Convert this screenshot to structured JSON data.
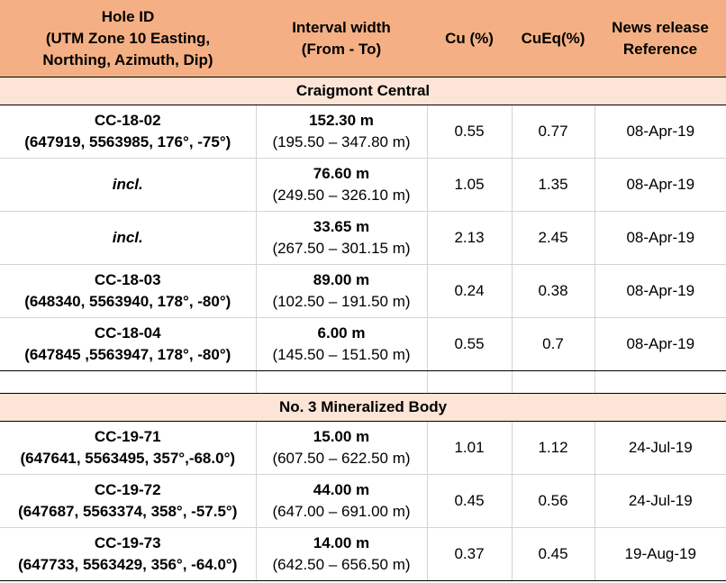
{
  "headers": {
    "hole_id_line1": "Hole ID",
    "hole_id_line2": "(UTM Zone 10 Easting,",
    "hole_id_line3": "Northing, Azimuth, Dip)",
    "interval_line1": "Interval width",
    "interval_line2": "(From - To)",
    "cu": "Cu (%)",
    "cueq": "CuEq(%)",
    "news_line1": "News release",
    "news_line2": "Reference"
  },
  "sections": [
    {
      "title": "Craigmont Central",
      "rows": [
        {
          "hole": "CC-18-02",
          "coords": "(647919, 5563985, 176°, -75°)",
          "width": "152.30 m",
          "range": "(195.50 – 347.80 m)",
          "cu": "0.55",
          "cueq": "0.77",
          "ref": "08-Apr-19"
        },
        {
          "hole": "incl.",
          "coords": "",
          "width": "76.60 m",
          "range": "(249.50 – 326.10 m)",
          "cu": "1.05",
          "cueq": "1.35",
          "ref": "08-Apr-19"
        },
        {
          "hole": "incl.",
          "coords": "",
          "width": "33.65 m",
          "range": "(267.50 – 301.15 m)",
          "cu": "2.13",
          "cueq": "2.45",
          "ref": "08-Apr-19"
        },
        {
          "hole": "CC-18-03",
          "coords": "(648340, 5563940, 178°, -80°)",
          "width": "89.00 m",
          "range": "(102.50 – 191.50 m)",
          "cu": "0.24",
          "cueq": "0.38",
          "ref": "08-Apr-19"
        },
        {
          "hole": "CC-18-04",
          "coords": "(647845 ,5563947, 178°, -80°)",
          "width": "6.00 m",
          "range": "(145.50 – 151.50 m)",
          "cu": "0.55",
          "cueq": "0.7",
          "ref": "08-Apr-19"
        }
      ]
    },
    {
      "title": "No. 3 Mineralized Body",
      "rows": [
        {
          "hole": "CC-19-71",
          "coords": "(647641, 5563495, 357°,-68.0°)",
          "width": "15.00 m",
          "range": "(607.50 – 622.50 m)",
          "cu": "1.01",
          "cueq": "1.12",
          "ref": "24-Jul-19"
        },
        {
          "hole": "CC-19-72",
          "coords": "(647687, 5563374, 358°, -57.5°)",
          "width": "44.00 m",
          "range": "(647.00 – 691.00 m)",
          "cu": "0.45",
          "cueq": "0.56",
          "ref": "24-Jul-19"
        },
        {
          "hole": "CC-19-73",
          "coords": "(647733, 5563429, 356°, -64.0°)",
          "width": "14.00 m",
          "range": "(642.50 – 656.50 m)",
          "cu": "0.37",
          "cueq": "0.45",
          "ref": "19-Aug-19"
        }
      ]
    }
  ]
}
